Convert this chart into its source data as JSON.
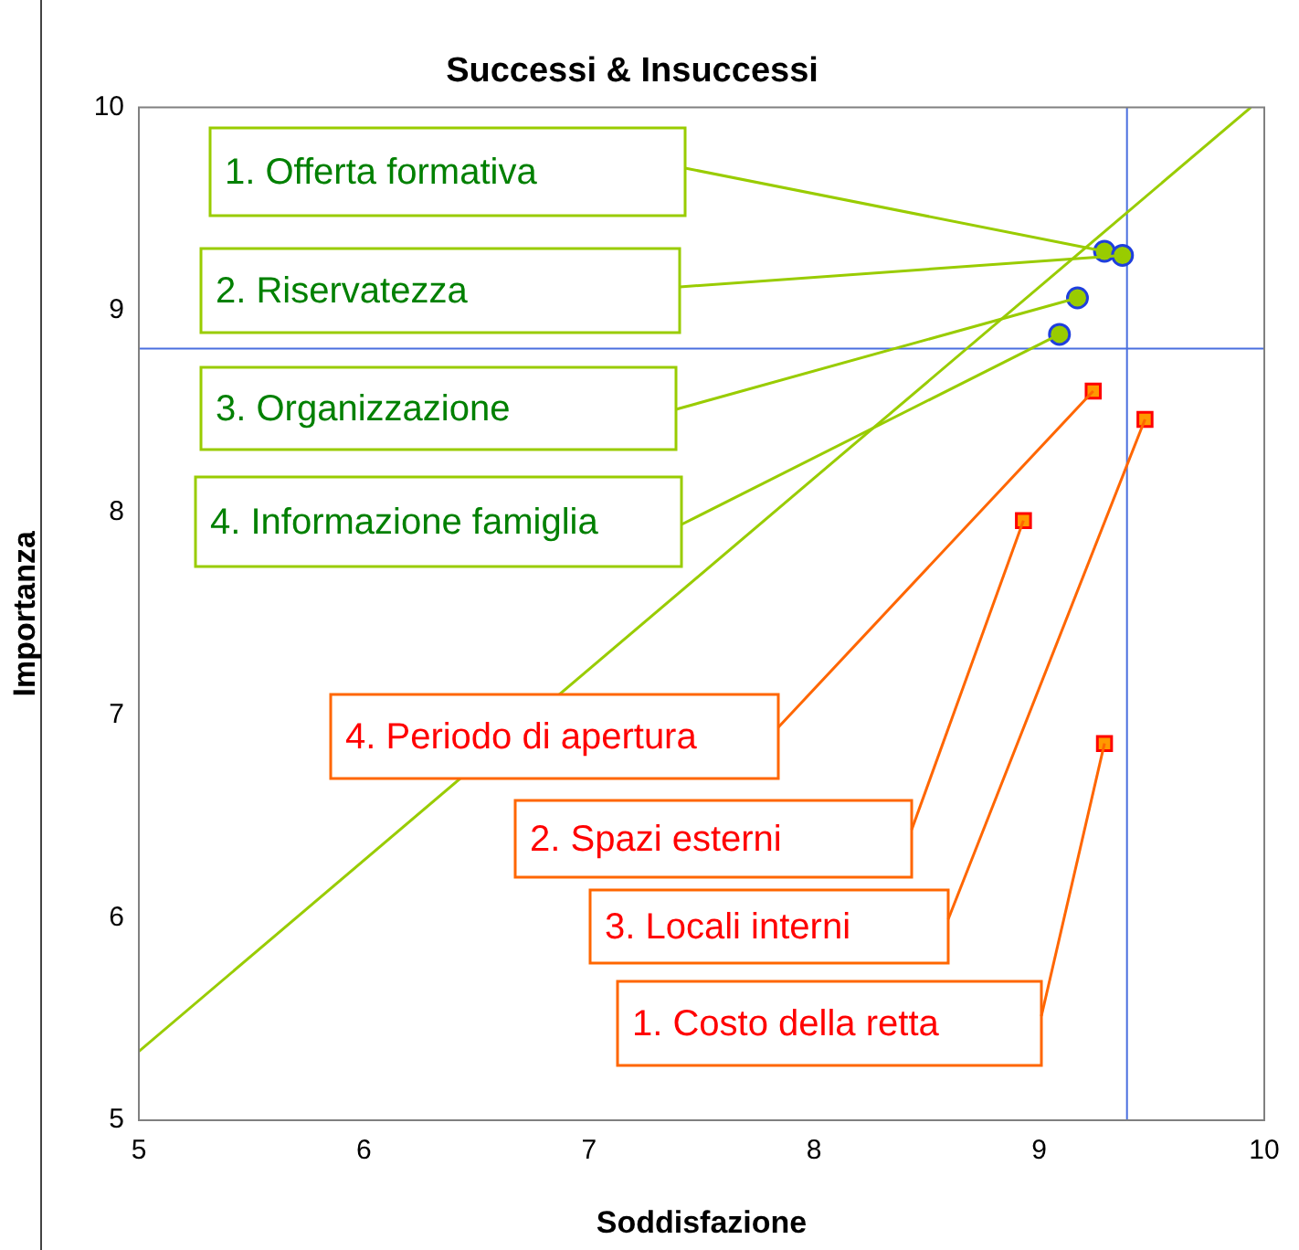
{
  "chart_data": {
    "type": "scatter",
    "title": "Successi & Insuccessi",
    "xlabel": "Soddisfazione",
    "ylabel": "Importanza",
    "xlim": [
      5,
      10
    ],
    "ylim": [
      5,
      10
    ],
    "xticks": [
      5,
      6,
      7,
      8,
      9,
      10
    ],
    "yticks": [
      5,
      6,
      7,
      8,
      9,
      10
    ],
    "grid": false,
    "legend": false,
    "series": [
      {
        "color": "#99cc00",
        "marker": "circle",
        "x": [
          9.29,
          9.37,
          9.17,
          9.09
        ],
        "values": [
          9.29,
          9.27,
          9.06,
          8.88
        ]
      },
      {
        "color": "#ff9900",
        "marker": "square",
        "x": [
          9.24,
          9.47,
          8.93,
          9.29
        ],
        "values": [
          8.6,
          8.46,
          7.96,
          6.86
        ]
      },
      {
        "type": "line",
        "color": "#99cc00",
        "marker": "none",
        "x": [
          5,
          9.94
        ],
        "values": [
          5.34,
          10
        ]
      }
    ],
    "ref_lines": [
      {
        "axis": "x",
        "value": 9.39,
        "color": "#4a6fdf"
      },
      {
        "axis": "y",
        "value": 8.81,
        "color": "#4a6fdf"
      }
    ],
    "annotations": [
      "1. Offerta formativa",
      "2. Riservatezza",
      "3. Organizzazione",
      "4. Informazione famiglia",
      "4. Periodo di apertura",
      "2. Spazi esterni",
      "3. Locali interni",
      "1. Costo della retta"
    ]
  }
}
